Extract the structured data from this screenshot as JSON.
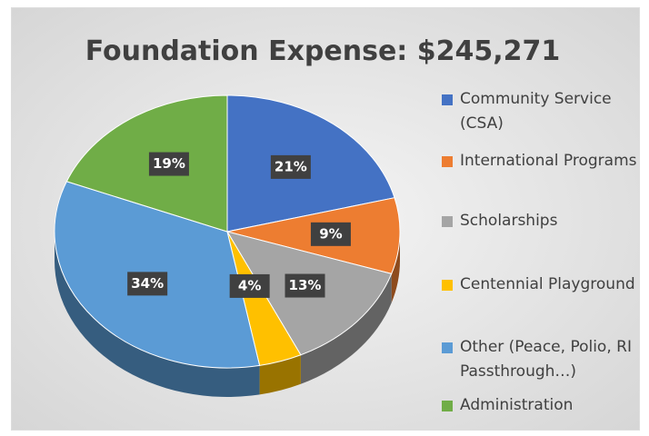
{
  "chart_data": {
    "type": "pie",
    "title": "Foundation Expense:  $245,271",
    "categories": [
      "Community Service (CSA)",
      "International Programs",
      "Scholarships",
      "Centennial Playground",
      "Other (Peace, Polio, RI Passthrough…)",
      "Administration"
    ],
    "values": [
      21,
      9,
      13,
      4,
      34,
      19
    ],
    "value_labels": [
      "21%",
      "9%",
      "13%",
      "4%",
      "34%",
      "19%"
    ],
    "colors": [
      "#4472c4",
      "#ed7d31",
      "#a5a5a5",
      "#ffc000",
      "#5b9bd5",
      "#70ad47"
    ],
    "legend": "right"
  }
}
